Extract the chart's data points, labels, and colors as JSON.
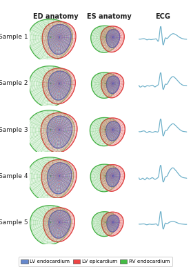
{
  "title_col1": "ED anatomy",
  "title_col2": "ES anatomy",
  "title_col3": "ECG",
  "row_labels": [
    "Sample 1",
    "Sample 2",
    "Sample 3",
    "Sample 4",
    "Sample 5"
  ],
  "ecg_color": "#6aaec8",
  "legend_labels": [
    "LV endocardium",
    "LV epicardium",
    "RV endocardium"
  ],
  "legend_colors": [
    "#6688cc",
    "#ee4444",
    "#44bb44"
  ],
  "col_header_fontsize": 7,
  "row_label_fontsize": 6.5,
  "ecg_signals": [
    [
      0,
      0,
      0.02,
      0.01,
      -0.04,
      -0.01,
      -0.03,
      -0.01,
      0.0,
      -0.02,
      -0.01,
      0.65,
      -0.25,
      0.0,
      0.03,
      0.12,
      0.22,
      0.28,
      0.26,
      0.2,
      0.12,
      0.06,
      0.02,
      0.0,
      -0.01
    ],
    [
      0,
      -0.06,
      -0.02,
      -0.06,
      -0.01,
      -0.03,
      -0.01,
      0.0,
      -0.06,
      -0.01,
      0.12,
      0.48,
      -0.12,
      0.01,
      0.04,
      0.16,
      0.28,
      0.34,
      0.3,
      0.22,
      0.13,
      0.06,
      0.01,
      0.0,
      -0.01
    ],
    [
      0,
      0.0,
      0.02,
      0.01,
      -0.03,
      0.0,
      -0.01,
      -0.02,
      0.0,
      -0.01,
      0.08,
      0.38,
      -0.1,
      0.0,
      0.04,
      0.13,
      0.2,
      0.24,
      0.21,
      0.15,
      0.09,
      0.04,
      0.01,
      0.0,
      -0.01
    ],
    [
      0,
      -0.04,
      -0.01,
      -0.05,
      0.0,
      -0.03,
      -0.01,
      0.0,
      -0.04,
      -0.01,
      0.08,
      0.32,
      -0.08,
      0.0,
      0.04,
      0.14,
      0.22,
      0.26,
      0.22,
      0.16,
      0.09,
      0.04,
      0.01,
      0.0,
      -0.01
    ],
    [
      0,
      0.0,
      0.01,
      0.0,
      -0.03,
      0.0,
      -0.01,
      -0.01,
      0.0,
      -0.01,
      0.04,
      0.58,
      -0.18,
      0.0,
      0.02,
      0.07,
      0.11,
      0.13,
      0.11,
      0.07,
      0.03,
      0.01,
      0.0,
      -0.01,
      -0.01
    ]
  ],
  "ed_scales": [
    1.0,
    0.97,
    1.08,
    1.04,
    0.93
  ],
  "es_scales": [
    0.8,
    0.77,
    0.85,
    0.82,
    0.74
  ],
  "lv_color_fill": "#b0b8e8",
  "lv_epi_fill": "#f8c8c8",
  "rv_color_fill": "#b0e8b0",
  "lv_edge": "#5566cc",
  "lv_epi_edge": "#dd3333",
  "rv_edge": "#33aa33"
}
